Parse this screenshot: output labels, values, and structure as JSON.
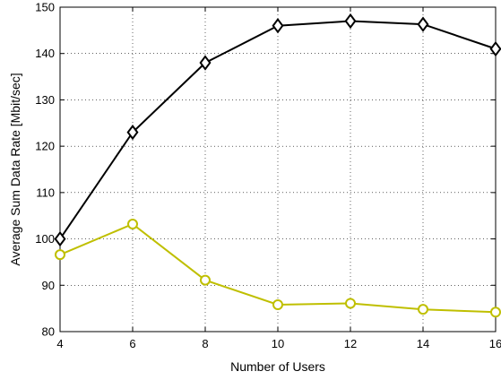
{
  "chart_data": {
    "type": "line",
    "xlabel": "Number of Users",
    "ylabel": "Average Sum Data Rate [Mbit/sec]",
    "x": [
      4,
      6,
      8,
      10,
      12,
      14,
      16
    ],
    "xlim": [
      4,
      16
    ],
    "ylim": [
      80,
      150
    ],
    "xticks": [
      4,
      6,
      8,
      10,
      12,
      14,
      16
    ],
    "yticks": [
      80,
      90,
      100,
      110,
      120,
      130,
      140,
      150
    ],
    "grid": true,
    "series": [
      {
        "values": [
          100,
          123,
          138,
          146,
          147,
          146.3,
          141
        ],
        "color": "#000000",
        "marker": "diamond"
      },
      {
        "values": [
          96.6,
          103.2,
          91.1,
          85.8,
          86.1,
          84.8,
          84.2
        ],
        "color": "#bfbf00",
        "marker": "circle"
      }
    ]
  }
}
